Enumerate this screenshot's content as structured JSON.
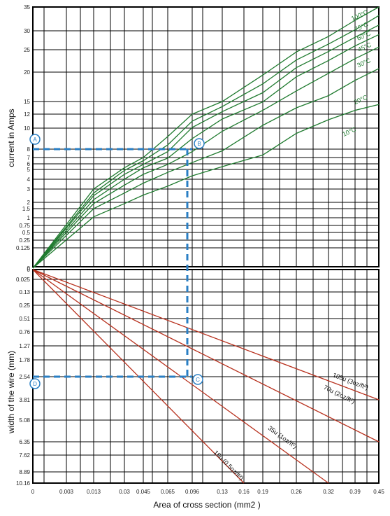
{
  "chart_data": [
    {
      "type": "line",
      "ylabel": "current in Amps",
      "y_ticks": [
        "0",
        "0.125",
        "0.25",
        "0.5",
        "0.75",
        "1",
        "1.5",
        "2",
        "3",
        "4",
        "5",
        "6",
        "7",
        "8",
        "10",
        "12",
        "15",
        "20",
        "25",
        "30",
        "35"
      ],
      "x_ticks": [
        "0",
        "0.003",
        "0.013",
        "0.03",
        "0.045",
        "0.065",
        "0.096",
        "0.13",
        "0.16",
        "0.19",
        "0.26",
        "0.32",
        "0.39",
        "0.45"
      ],
      "series": [
        {
          "name": "100°C",
          "color": "#1e7a2e",
          "label_at": [
            0.383,
            32.1
          ],
          "x": [
            0,
            0.013,
            0.03,
            0.045,
            0.065,
            0.096,
            0.13,
            0.19,
            0.26,
            0.32,
            0.39,
            0.45
          ],
          "y": [
            0,
            3.0,
            5.3,
            7.0,
            9.2,
            12.0,
            15.0,
            19.5,
            24.5,
            28.5,
            32.2,
            35.0
          ]
        },
        {
          "name": "75°C",
          "color": "#1e7a2e",
          "label_at": [
            0.392,
            29.8
          ],
          "x": [
            0,
            0.013,
            0.03,
            0.045,
            0.065,
            0.096,
            0.13,
            0.19,
            0.26,
            0.32,
            0.39,
            0.45
          ],
          "y": [
            0,
            2.7,
            4.9,
            6.5,
            8.4,
            11.0,
            13.8,
            18.0,
            22.7,
            26.5,
            30.2,
            33.2
          ]
        },
        {
          "name": "60°C",
          "color": "#1e7a2e",
          "label_at": [
            0.398,
            27.4
          ],
          "x": [
            0,
            0.013,
            0.03,
            0.045,
            0.065,
            0.096,
            0.13,
            0.19,
            0.26,
            0.32,
            0.39,
            0.45
          ],
          "y": [
            0,
            2.5,
            4.5,
            5.9,
            7.7,
            10.1,
            12.6,
            16.5,
            21.0,
            24.6,
            28.3,
            31.2
          ]
        },
        {
          "name": "45°C",
          "color": "#1e7a2e",
          "label_at": [
            0.4,
            24.5
          ],
          "x": [
            0,
            0.013,
            0.03,
            0.045,
            0.065,
            0.096,
            0.13,
            0.19,
            0.26,
            0.32,
            0.39,
            0.45
          ],
          "y": [
            0,
            2.2,
            4.0,
            5.3,
            6.9,
            9.0,
            11.3,
            14.9,
            19.2,
            22.6,
            26.0,
            29.0
          ]
        },
        {
          "name": "30°C",
          "color": "#1e7a2e",
          "label_at": [
            0.398,
            21.0
          ],
          "x": [
            0,
            0.013,
            0.03,
            0.045,
            0.065,
            0.096,
            0.13,
            0.19,
            0.26,
            0.32,
            0.39,
            0.45
          ],
          "y": [
            0,
            1.9,
            3.4,
            4.5,
            5.9,
            7.7,
            9.7,
            12.9,
            16.8,
            19.8,
            23.0,
            25.7
          ]
        },
        {
          "name": "20°C",
          "color": "#1e7a2e",
          "label_at": [
            0.39,
            14.3
          ],
          "x": [
            0,
            0.013,
            0.03,
            0.045,
            0.065,
            0.096,
            0.13,
            0.19,
            0.26,
            0.32,
            0.39,
            0.45
          ],
          "y": [
            0,
            1.5,
            2.7,
            3.6,
            4.7,
            6.2,
            7.8,
            10.4,
            13.5,
            16.0,
            18.6,
            20.8
          ]
        },
        {
          "name": "10°C",
          "color": "#1e7a2e",
          "label_at": [
            0.36,
            9.2
          ],
          "x": [
            0,
            0.013,
            0.03,
            0.045,
            0.065,
            0.096,
            0.13,
            0.19,
            0.26,
            0.32,
            0.39,
            0.45
          ],
          "y": [
            0,
            1.05,
            1.9,
            2.55,
            3.3,
            4.35,
            5.5,
            7.3,
            9.5,
            11.2,
            12.9,
            14.3
          ]
        }
      ],
      "markers": [
        {
          "label": "A",
          "x": 0,
          "y": 8
        },
        {
          "label": "B",
          "x": 0.096,
          "y": 8.5
        }
      ]
    },
    {
      "type": "line",
      "xlabel": "Area of cross section (mm2 )",
      "ylabel": "width of the wire  (mm)",
      "y_ticks": [
        "0",
        "0.025",
        "0.13",
        "0.25",
        "0.51",
        "0.76",
        "1.27",
        "1.78",
        "2.54",
        "3.81",
        "5.08",
        "6.35",
        "7.62",
        "8.89",
        "10.16"
      ],
      "x_ticks": [
        "0",
        "0.003",
        "0.013",
        "0.03",
        "0.045",
        "0.065",
        "0.096",
        "0.13",
        "0.16",
        "0.19",
        "0.26",
        "0.32",
        "0.39",
        "0.45"
      ],
      "series": [
        {
          "name": "105u (3oz/ft²)",
          "color": "#b8321f",
          "x": [
            0,
            0.45
          ],
          "y": [
            0,
            3.81
          ],
          "label_at": [
            0.33,
            2.54
          ]
        },
        {
          "name": "70u (2oz/ft²)",
          "color": "#b8321f",
          "x": [
            0,
            0.45
          ],
          "y": [
            0,
            6.35
          ],
          "label_at": [
            0.31,
            3.2
          ]
        },
        {
          "name": "35u (1oz/ft²)",
          "color": "#b8321f",
          "x": [
            0,
            0.32
          ],
          "y": [
            0,
            10.16
          ],
          "label_at": [
            0.2,
            5.6
          ]
        },
        {
          "name": "18u (0.5oz/ft²)",
          "color": "#b8321f",
          "x": [
            0,
            0.16
          ],
          "y": [
            0,
            10.16
          ],
          "label_at": [
            0.12,
            7.4
          ]
        }
      ],
      "markers": [
        {
          "label": "C",
          "x": 0.096,
          "y": 2.54
        },
        {
          "label": "D",
          "x": 0,
          "y": 2.54
        }
      ]
    }
  ],
  "guides": {
    "color": "#2a7fc4",
    "x_value": 0.096,
    "y_top_value": 8,
    "y_bottom_value": 2.54
  }
}
